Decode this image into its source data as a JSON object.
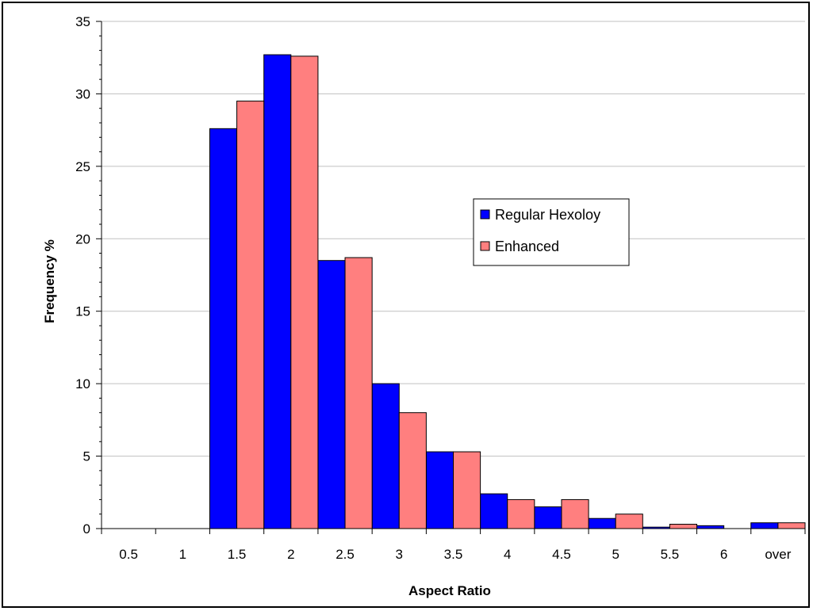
{
  "chart_data": {
    "type": "bar",
    "title": "",
    "xlabel": "Aspect Ratio",
    "ylabel": "Frequency %",
    "ylim": [
      0,
      35
    ],
    "yticks": [
      "0",
      "5",
      "10",
      "15",
      "20",
      "25",
      "30",
      "35"
    ],
    "categories": [
      "0.5",
      "1",
      "1.5",
      "2",
      "2.5",
      "3",
      "3.5",
      "4",
      "4.5",
      "5",
      "5.5",
      "6",
      "over"
    ],
    "grid": true,
    "legend_position": "right-middle",
    "series": [
      {
        "name": "Regular Hexoloy",
        "color": "#0000ff",
        "values": [
          0,
          0,
          27.6,
          32.7,
          18.5,
          10.0,
          5.3,
          2.4,
          1.5,
          0.7,
          0.1,
          0.2,
          0.4
        ]
      },
      {
        "name": "Enhanced",
        "color": "#ff7f7f",
        "values": [
          0,
          0,
          29.5,
          32.6,
          18.7,
          8.0,
          5.3,
          2.0,
          2.0,
          1.0,
          0.3,
          0.0,
          0.4
        ]
      }
    ]
  }
}
